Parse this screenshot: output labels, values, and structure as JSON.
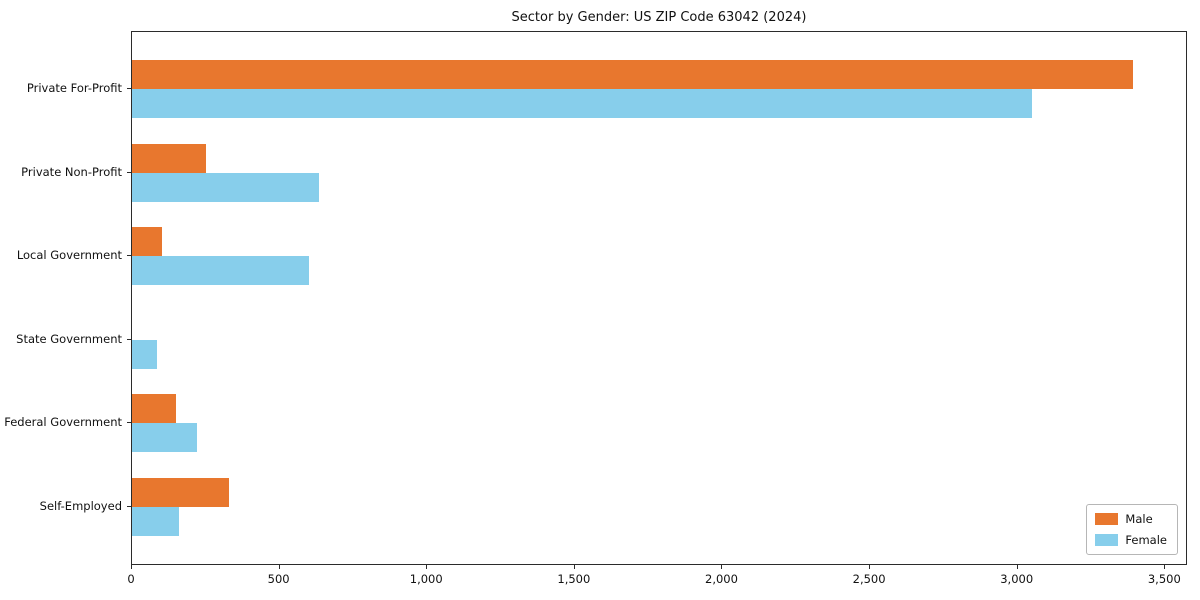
{
  "chart_data": {
    "type": "bar",
    "orientation": "horizontal",
    "title": "Sector by Gender: US ZIP Code 63042 (2024)",
    "categories": [
      "Private For-Profit",
      "Private Non-Profit",
      "Local Government",
      "State Government",
      "Federal Government",
      "Self-Employed"
    ],
    "series": [
      {
        "name": "Male",
        "color": "#E8772E",
        "values": [
          3390,
          250,
          100,
          0,
          150,
          330
        ]
      },
      {
        "name": "Female",
        "color": "#87CEEB",
        "values": [
          3050,
          635,
          600,
          85,
          220,
          160
        ]
      }
    ],
    "xlabel": "",
    "ylabel": "",
    "xlim": [
      0,
      3570
    ],
    "xticks": [
      0,
      500,
      1000,
      1500,
      2000,
      2500,
      3000,
      3500
    ],
    "xtick_labels": [
      "0",
      "500",
      "1,000",
      "1,500",
      "2,000",
      "2,500",
      "3,000",
      "3,500"
    ],
    "grid": false,
    "legend_position": "lower right"
  }
}
